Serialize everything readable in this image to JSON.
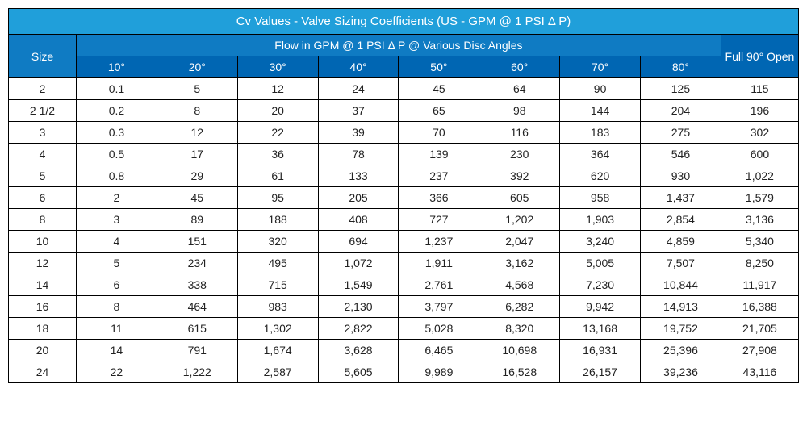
{
  "table": {
    "title": "Cv Values - Valve Sizing Coefficients  (US - GPM @ 1 PSI Δ P)",
    "size_label": "Size",
    "subheader": "Flow in GPM @ 1 PSI Δ P @ Various Disc Angles",
    "full_open_label": "Full 90° Open",
    "angles": [
      "10°",
      "20°",
      "30°",
      "40°",
      "50°",
      "60°",
      "70°",
      "80°"
    ],
    "rows": [
      {
        "size": "2",
        "v": [
          "0.1",
          "5",
          "12",
          "24",
          "45",
          "64",
          "90",
          "125"
        ],
        "full": "115"
      },
      {
        "size": "2 1/2",
        "v": [
          "0.2",
          "8",
          "20",
          "37",
          "65",
          "98",
          "144",
          "204"
        ],
        "full": "196"
      },
      {
        "size": "3",
        "v": [
          "0.3",
          "12",
          "22",
          "39",
          "70",
          "116",
          "183",
          "275"
        ],
        "full": "302"
      },
      {
        "size": "4",
        "v": [
          "0.5",
          "17",
          "36",
          "78",
          "139",
          "230",
          "364",
          "546"
        ],
        "full": "600"
      },
      {
        "size": "5",
        "v": [
          "0.8",
          "29",
          "61",
          "133",
          "237",
          "392",
          "620",
          "930"
        ],
        "full": "1,022"
      },
      {
        "size": "6",
        "v": [
          "2",
          "45",
          "95",
          "205",
          "366",
          "605",
          "958",
          "1,437"
        ],
        "full": "1,579"
      },
      {
        "size": "8",
        "v": [
          "3",
          "89",
          "188",
          "408",
          "727",
          "1,202",
          "1,903",
          "2,854"
        ],
        "full": "3,136"
      },
      {
        "size": "10",
        "v": [
          "4",
          "151",
          "320",
          "694",
          "1,237",
          "2,047",
          "3,240",
          "4,859"
        ],
        "full": "5,340"
      },
      {
        "size": "12",
        "v": [
          "5",
          "234",
          "495",
          "1,072",
          "1,911",
          "3,162",
          "5,005",
          "7,507"
        ],
        "full": "8,250"
      },
      {
        "size": "14",
        "v": [
          "6",
          "338",
          "715",
          "1,549",
          "2,761",
          "4,568",
          "7,230",
          "10,844"
        ],
        "full": "11,917"
      },
      {
        "size": "16",
        "v": [
          "8",
          "464",
          "983",
          "2,130",
          "3,797",
          "6,282",
          "9,942",
          "14,913"
        ],
        "full": "16,388"
      },
      {
        "size": "18",
        "v": [
          "11",
          "615",
          "1,302",
          "2,822",
          "5,028",
          "8,320",
          "13,168",
          "19,752"
        ],
        "full": "21,705"
      },
      {
        "size": "20",
        "v": [
          "14",
          "791",
          "1,674",
          "3,628",
          "6,465",
          "10,698",
          "16,931",
          "25,396"
        ],
        "full": "27,908"
      },
      {
        "size": "24",
        "v": [
          "22",
          "1,222",
          "2,587",
          "5,605",
          "9,989",
          "16,528",
          "26,157",
          "39,236"
        ],
        "full": "43,116"
      }
    ],
    "colors": {
      "title_bg": "#209fda",
      "mid_bg": "#0f7bc3",
      "dark_bg": "#0066b3",
      "header_text": "#ffffff",
      "cell_text": "#222222",
      "border": "#000000"
    },
    "font_family": "Arial",
    "font_size_header": 15,
    "font_size_body": 14
  }
}
